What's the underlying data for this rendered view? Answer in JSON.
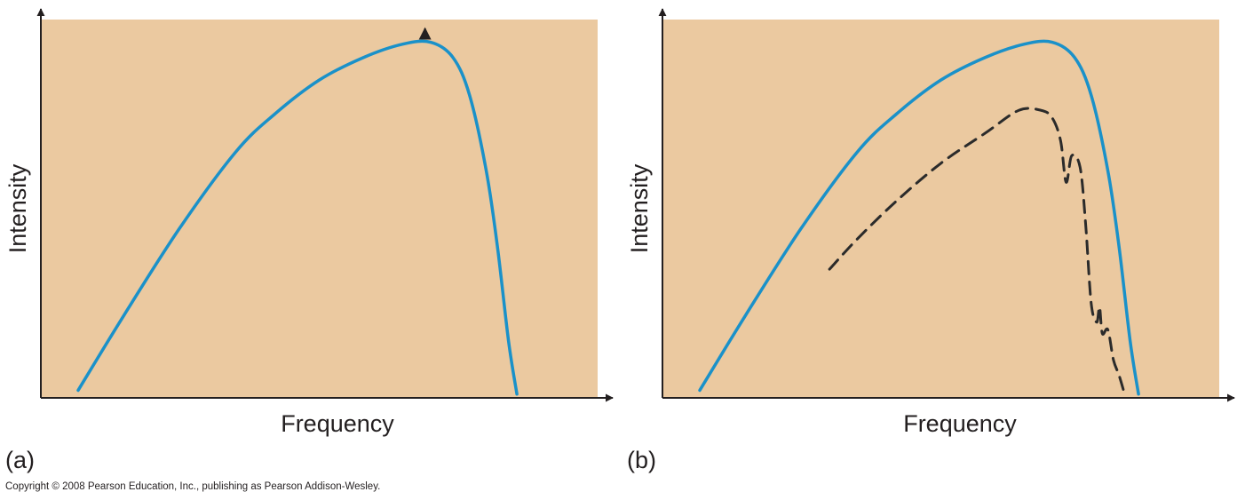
{
  "colors": {
    "plot_background": "#ebc9a0",
    "curve": "#1a91c9",
    "dashed_curve": "#2b2b2b",
    "axis": "#231f20"
  },
  "copyright": "Copyright © 2008 Pearson Education, Inc., publishing as Pearson Addison-Wesley.",
  "chart_data": [
    {
      "type": "line",
      "panel_label": "(a)",
      "xlabel": "Frequency",
      "ylabel": "Intensity",
      "xlim": [
        0,
        1
      ],
      "ylim": [
        0,
        1
      ],
      "grid": false,
      "ticks": "none",
      "annotations": [
        {
          "type": "arrow",
          "points_to": "peak",
          "x": 0.69
        }
      ],
      "series": [
        {
          "style": "solid",
          "color": "#1a91c9",
          "x": [
            0.067,
            0.15,
            0.25,
            0.35,
            0.42,
            0.5,
            0.58,
            0.65,
            0.7,
            0.74,
            0.77,
            0.8,
            0.82,
            0.84,
            0.855
          ],
          "y": [
            0.02,
            0.22,
            0.45,
            0.65,
            0.75,
            0.84,
            0.9,
            0.935,
            0.94,
            0.9,
            0.8,
            0.6,
            0.4,
            0.15,
            0.01
          ]
        }
      ]
    },
    {
      "type": "line",
      "panel_label": "(b)",
      "xlabel": "Frequency",
      "ylabel": "Intensity",
      "xlim": [
        0,
        1
      ],
      "ylim": [
        0,
        1
      ],
      "grid": false,
      "ticks": "none",
      "series": [
        {
          "style": "solid",
          "color": "#1a91c9",
          "x": [
            0.067,
            0.15,
            0.25,
            0.35,
            0.42,
            0.5,
            0.58,
            0.65,
            0.7,
            0.74,
            0.77,
            0.8,
            0.82,
            0.84,
            0.855
          ],
          "y": [
            0.02,
            0.22,
            0.45,
            0.65,
            0.75,
            0.84,
            0.9,
            0.935,
            0.94,
            0.9,
            0.8,
            0.6,
            0.4,
            0.15,
            0.01
          ]
        },
        {
          "style": "dashed",
          "color": "#2b2b2b",
          "x": [
            0.3,
            0.35,
            0.42,
            0.5,
            0.58,
            0.64,
            0.68,
            0.7,
            0.715,
            0.725,
            0.735,
            0.75,
            0.76,
            0.77,
            0.78,
            0.785,
            0.79,
            0.8,
            0.81,
            0.82,
            0.83
          ],
          "y": [
            0.34,
            0.42,
            0.52,
            0.62,
            0.7,
            0.76,
            0.76,
            0.74,
            0.68,
            0.57,
            0.64,
            0.61,
            0.46,
            0.25,
            0.2,
            0.24,
            0.17,
            0.18,
            0.1,
            0.06,
            0.01
          ]
        }
      ]
    }
  ]
}
